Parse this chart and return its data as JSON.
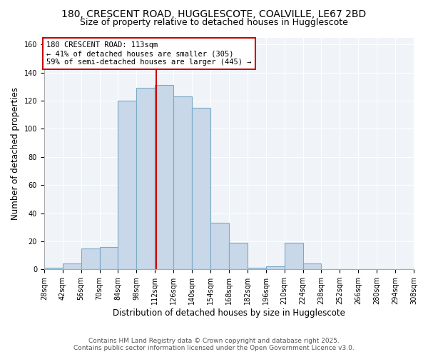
{
  "title": "180, CRESCENT ROAD, HUGGLESCOTE, COALVILLE, LE67 2BD",
  "subtitle": "Size of property relative to detached houses in Hugglescote",
  "xlabel": "Distribution of detached houses by size in Hugglescote",
  "ylabel": "Number of detached properties",
  "bin_edges": [
    28,
    42,
    56,
    70,
    84,
    98,
    112,
    126,
    140,
    154,
    168,
    182,
    196,
    210,
    224,
    238,
    252,
    266,
    280,
    294,
    308
  ],
  "bar_heights": [
    1,
    4,
    15,
    16,
    120,
    129,
    131,
    123,
    115,
    33,
    19,
    1,
    2,
    19,
    4,
    0,
    0,
    0,
    0,
    0
  ],
  "bar_color": "#c8d8e8",
  "bar_edgecolor": "#7aaac8",
  "property_size": 113,
  "vline_color": "#cc0000",
  "annotation_text": "180 CRESCENT ROAD: 113sqm\n← 41% of detached houses are smaller (305)\n59% of semi-detached houses are larger (445) →",
  "annotation_box_color": "#ffffff",
  "annotation_box_edgecolor": "#cc0000",
  "ylim": [
    0,
    165
  ],
  "yticks": [
    0,
    20,
    40,
    60,
    80,
    100,
    120,
    140,
    160
  ],
  "footer_line1": "Contains HM Land Registry data © Crown copyright and database right 2025.",
  "footer_line2": "Contains public sector information licensed under the Open Government Licence v3.0.",
  "title_fontsize": 10,
  "subtitle_fontsize": 9,
  "axis_label_fontsize": 8.5,
  "tick_fontsize": 7,
  "annotation_fontsize": 7.5,
  "footer_fontsize": 6.5,
  "bg_color": "#f0f4f8"
}
